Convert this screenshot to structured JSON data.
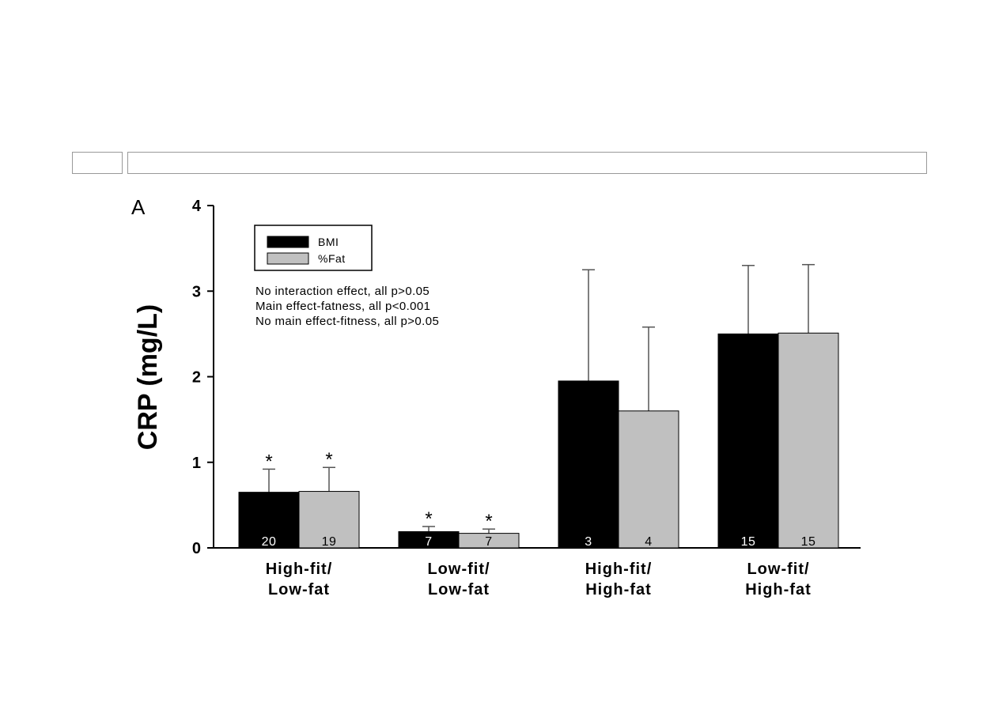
{
  "chart_data": {
    "type": "bar",
    "panel_label": "A",
    "ylabel": "CRP (mg/L)",
    "ylim": [
      0,
      4
    ],
    "yticks": [
      "0",
      "1",
      "2",
      "3",
      "4"
    ],
    "categories": [
      [
        "High-fit/",
        "Low-fat"
      ],
      [
        "Low-fit/",
        "Low-fat"
      ],
      [
        "High-fit/",
        "High-fat"
      ],
      [
        "Low-fit/",
        "High-fat"
      ]
    ],
    "series": [
      {
        "name": "BMI",
        "color": "#000000",
        "values": [
          0.65,
          0.19,
          1.95,
          2.5
        ],
        "error_upper": [
          0.92,
          0.25,
          3.25,
          3.3
        ],
        "n": [
          "20",
          "7",
          "3",
          "15"
        ],
        "significant": [
          true,
          true,
          false,
          false
        ]
      },
      {
        "name": "%Fat",
        "color": "#c0c0c0",
        "values": [
          0.66,
          0.17,
          1.6,
          2.51
        ],
        "error_upper": [
          0.94,
          0.22,
          2.58,
          3.31
        ],
        "n": [
          "19",
          "7",
          "4",
          "15"
        ],
        "significant": [
          true,
          true,
          false,
          false
        ]
      }
    ],
    "significance_marker": "*",
    "annotations": [
      "No interaction effect, all p>0.05",
      "Main effect-fatness, all p<0.001",
      "No main effect-fitness, all p>0.05"
    ],
    "legend_position": "top-left",
    "grid": false
  }
}
